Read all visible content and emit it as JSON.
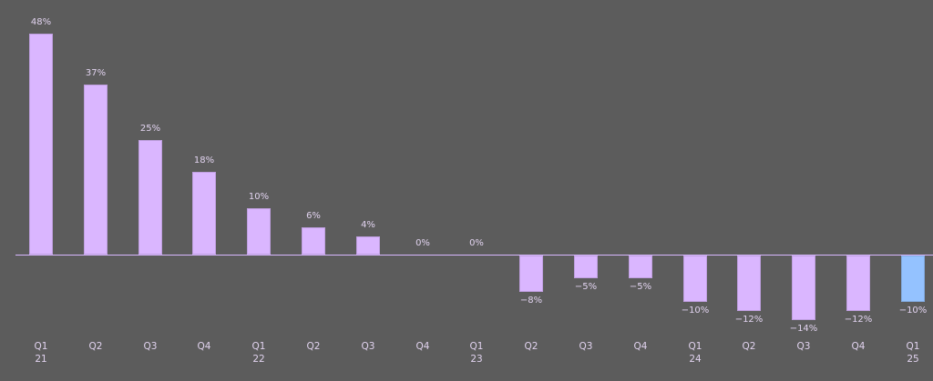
{
  "chart_data": {
    "type": "bar",
    "title": "",
    "xlabel": "",
    "ylabel": "",
    "categories": [
      "Q1 21",
      "Q2",
      "Q3",
      "Q4",
      "Q1 22",
      "Q2",
      "Q3",
      "Q4",
      "Q1 23",
      "Q2",
      "Q3",
      "Q4",
      "Q1 24",
      "Q2",
      "Q3",
      "Q4",
      "Q1 25"
    ],
    "category_labels": [
      [
        "Q1",
        "21"
      ],
      [
        "Q2",
        ""
      ],
      [
        "Q3",
        ""
      ],
      [
        "Q4",
        ""
      ],
      [
        "Q1",
        "22"
      ],
      [
        "Q2",
        ""
      ],
      [
        "Q3",
        ""
      ],
      [
        "Q4",
        ""
      ],
      [
        "Q1",
        "23"
      ],
      [
        "Q2",
        ""
      ],
      [
        "Q3",
        ""
      ],
      [
        "Q4",
        ""
      ],
      [
        "Q1",
        "24"
      ],
      [
        "Q2",
        ""
      ],
      [
        "Q3",
        ""
      ],
      [
        "Q4",
        ""
      ],
      [
        "Q1",
        "25"
      ]
    ],
    "values": [
      48,
      37,
      25,
      18,
      10,
      6,
      4,
      0,
      0,
      -8,
      -5,
      -5,
      -10,
      -12,
      -14,
      -12,
      -10
    ],
    "value_labels": [
      "48%",
      "37%",
      "25%",
      "18%",
      "10%",
      "6%",
      "4%",
      "0%",
      "0%",
      "−8%",
      "−5%",
      "−5%",
      "−10%",
      "−12%",
      "−14%",
      "−12%",
      "−10%"
    ],
    "ylim": [
      -14,
      48
    ],
    "grid": false,
    "legend": null,
    "colors": {
      "default": "#dab6ff",
      "highlight": "#94c2ff",
      "highlight_index": 16,
      "background": "#5c5c5c",
      "text": "#e0d2ee"
    }
  }
}
